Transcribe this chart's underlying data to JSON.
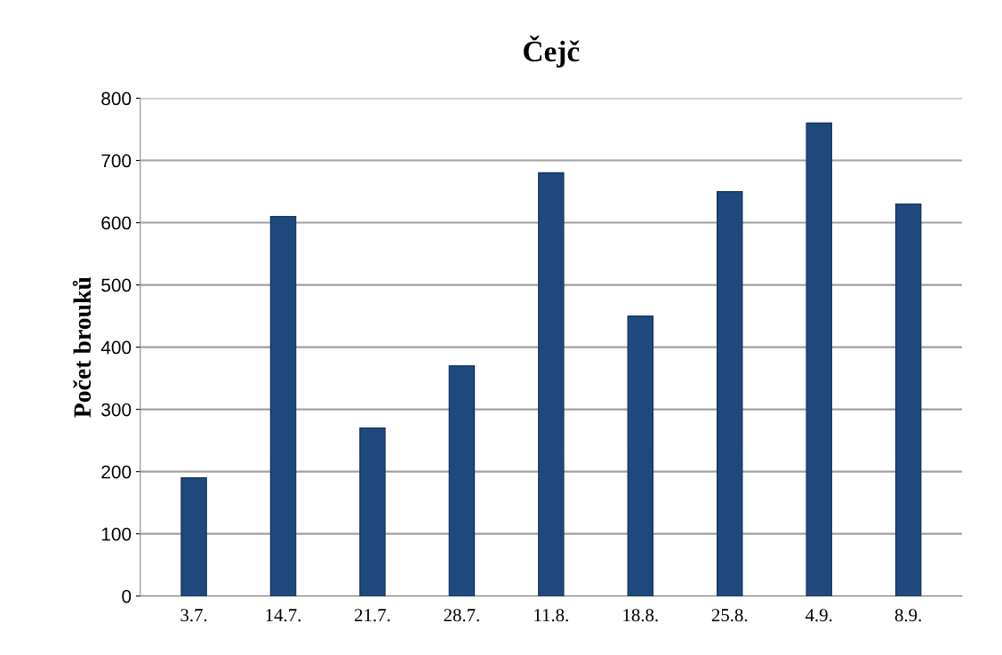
{
  "chart_data": {
    "type": "bar",
    "title": "Čejč",
    "ylabel": "Počet brouků",
    "categories": [
      "3.7.",
      "14.7.",
      "21.7.",
      "28.7.",
      "11.8.",
      "18.8.",
      "25.8.",
      "4.9.",
      "8.9."
    ],
    "values": [
      190,
      610,
      270,
      370,
      680,
      450,
      650,
      760,
      630
    ],
    "color": "#1f497d",
    "ylim": [
      0,
      800
    ],
    "yticks": [
      0,
      100,
      200,
      300,
      400,
      500,
      600,
      700,
      800
    ],
    "grid": "y"
  }
}
